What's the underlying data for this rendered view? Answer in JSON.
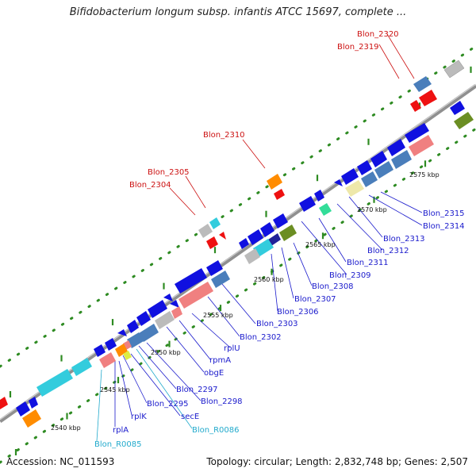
{
  "title": "Bifidobacterium longum subsp. infantis ATCC 15697, complete ...",
  "footer": {
    "accession": "Accession: NC_011593",
    "summary": "Topology: circular; Length: 2,832,748 bp; Genes: 2,507"
  },
  "colors": {
    "axis": "#888888",
    "tick": "#2e8b22",
    "gene_blue": "#1010e0",
    "gene_steel": "#4a7ebb",
    "gene_salmon": "#f08080",
    "gene_orange": "#ff8c00",
    "gene_red": "#ee1111",
    "gene_cyan": "#33ccdd",
    "gene_gray": "#bbbbbb",
    "gene_khaki": "#eee8aa",
    "gene_olive": "#6b8e23",
    "gene_green": "#33dd99",
    "label_blue": "#1a1acc",
    "label_red": "#cc1111",
    "label_cyan": "#22aacc"
  },
  "scale_labels": [
    "2540 kbp",
    "2545 kbp",
    "2550 kbp",
    "2555 kbp",
    "2560 kbp",
    "2565 kbp",
    "2570 kbp",
    "2575 kbp"
  ],
  "gene_labels_red": [
    "Blon_2320",
    "Blon_2319",
    "Blon_2310",
    "Blon_2305",
    "Blon_2304"
  ],
  "gene_labels_blue": [
    "Blon_2315",
    "Blon_2314",
    "Blon_2313",
    "Blon_2312",
    "Blon_2311",
    "Blon_2309",
    "Blon_2308",
    "Blon_2307",
    "Blon_2306",
    "Blon_2303",
    "Blon_2302",
    "rplU",
    "rpmA",
    "obgE",
    "Blon_2297",
    "Blon_2298",
    "Blon_2295",
    "secE",
    "rplK",
    "rplA"
  ],
  "gene_labels_cyan": [
    "Blon_R0086",
    "Blon_R0085"
  ]
}
